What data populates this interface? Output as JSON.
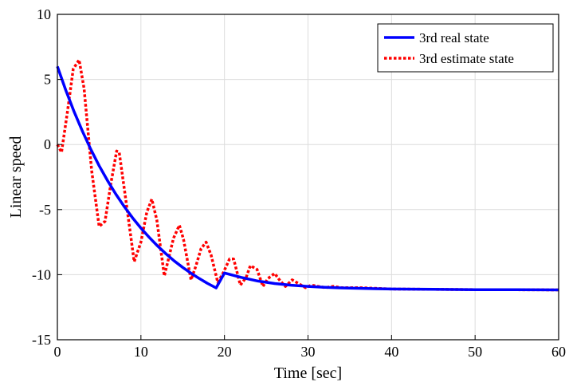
{
  "chart_data": {
    "type": "line",
    "title": "",
    "xlabel": "Time [sec]",
    "ylabel": "Linear speed",
    "xlim": [
      0,
      60
    ],
    "ylim": [
      -15,
      10
    ],
    "xticks": [
      0,
      10,
      20,
      30,
      40,
      50,
      60
    ],
    "yticks": [
      10,
      5,
      0,
      -5,
      -10,
      -15
    ],
    "xtick_labels": [
      "0",
      "10",
      "20",
      "30",
      "40",
      "50",
      "60"
    ],
    "ytick_labels": [
      "10",
      "5",
      "0",
      "-5",
      "-10",
      "-15"
    ],
    "grid": true,
    "legend_position": "top-right",
    "series": [
      {
        "name": "3rd real state",
        "color": "#0000ff",
        "style": "solid",
        "x": [
          0,
          1,
          2,
          3,
          4,
          5,
          6,
          7,
          8,
          9,
          10,
          11,
          12,
          13,
          14,
          15,
          16,
          17,
          18,
          19,
          20,
          22,
          24,
          26,
          28,
          30,
          32,
          34,
          36,
          38,
          40,
          45,
          50,
          55,
          60
        ],
        "y": [
          6.0,
          4.18,
          2.52,
          1.01,
          -0.37,
          -1.63,
          -2.77,
          -3.82,
          -4.77,
          -5.63,
          -6.42,
          -7.14,
          -7.8,
          -8.4,
          -8.95,
          -9.44,
          -9.89,
          -10.3,
          -10.68,
          -11.02,
          -9.87,
          -10.21,
          -10.49,
          -10.68,
          -10.81,
          -10.9,
          -10.97,
          -11.02,
          -11.05,
          -11.08,
          -11.1,
          -11.13,
          -11.15,
          -11.16,
          -11.17
        ]
      },
      {
        "name": "3rd estimate state",
        "color": "#ff0000",
        "style": "dotted",
        "x": [
          0,
          0.5,
          1.2,
          1.9,
          2.6,
          3.2,
          4.1,
          5.0,
          5.7,
          6.4,
          7.1,
          7.4,
          8.2,
          9.2,
          10.0,
          10.7,
          11.3,
          11.9,
          12.8,
          13.3,
          13.9,
          14.6,
          15.1,
          16.0,
          16.6,
          17.2,
          17.8,
          18.4,
          19.2,
          19.9,
          20.6,
          21.1,
          21.9,
          22.6,
          23.1,
          23.9,
          24.6,
          25.2,
          26.0,
          26.7,
          27.3,
          28.1,
          28.9,
          29.7,
          30.4,
          31.2,
          32.1,
          33.0,
          34.0,
          35.0,
          36.0,
          38.0,
          40.0,
          45.0,
          50.0,
          55.0,
          60.0
        ],
        "y": [
          0.0,
          -0.6,
          2.5,
          5.8,
          6.5,
          4.3,
          -2.0,
          -6.3,
          -5.9,
          -3.0,
          -0.5,
          -0.6,
          -4.3,
          -9.0,
          -7.5,
          -5.2,
          -4.2,
          -5.8,
          -10.1,
          -8.8,
          -7.2,
          -6.2,
          -7.3,
          -10.4,
          -9.3,
          -8.0,
          -7.5,
          -8.5,
          -10.6,
          -9.8,
          -8.8,
          -8.8,
          -10.8,
          -10.2,
          -9.3,
          -9.6,
          -10.9,
          -10.3,
          -9.9,
          -10.5,
          -10.9,
          -10.4,
          -10.7,
          -11.0,
          -10.8,
          -10.9,
          -11.0,
          -10.9,
          -11.0,
          -11.0,
          -11.0,
          -11.05,
          -11.1,
          -11.13,
          -11.15,
          -11.16,
          -11.17
        ]
      }
    ]
  }
}
